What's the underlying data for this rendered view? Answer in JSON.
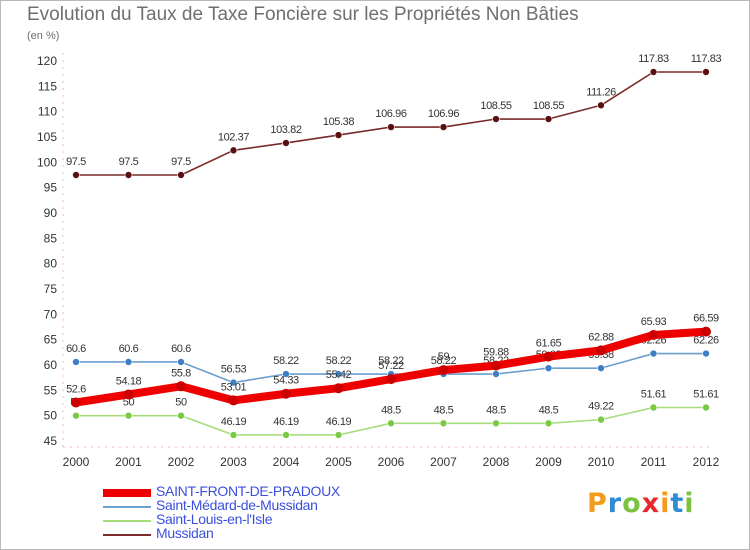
{
  "title": "Evolution du Taux de Taxe Foncière sur les Propriétés Non Bâties",
  "unit": "(en %)",
  "brand": "Proxiti",
  "chart_data": {
    "type": "line",
    "x": [
      "2000",
      "2001",
      "2002",
      "2003",
      "2004",
      "2005",
      "2006",
      "2007",
      "2008",
      "2009",
      "2010",
      "2011",
      "2012"
    ],
    "ylim": [
      45,
      120
    ],
    "yticks": [
      45,
      50,
      55,
      60,
      65,
      70,
      75,
      80,
      85,
      90,
      95,
      100,
      105,
      110,
      115,
      120
    ],
    "grid": false,
    "legend_position": "bottom-left",
    "series": [
      {
        "name": "Mussidan",
        "color": "#7b2a2a",
        "marker": "#5a1010",
        "values": [
          97.5,
          97.5,
          97.5,
          102.37,
          103.82,
          105.38,
          106.96,
          106.96,
          108.55,
          108.55,
          111.26,
          117.83,
          117.83
        ],
        "labels": [
          "97.5",
          "97.5",
          "97.5",
          "102.37",
          "103.82",
          "105.38",
          "106.96",
          "106.96",
          "108.55",
          "108.55",
          "111.26",
          "117.83",
          "117.83"
        ]
      },
      {
        "name": "Saint-Médard-de-Mussidan",
        "color": "#6a9fce",
        "marker": "#3d7fc4",
        "values": [
          60.6,
          60.6,
          60.6,
          56.53,
          58.22,
          58.22,
          58.22,
          58.22,
          58.22,
          59.38,
          59.38,
          62.26,
          62.26
        ],
        "labels": [
          "60.6",
          "60.6",
          "60.6",
          "56.53",
          "58.22",
          "58.22",
          "58.22",
          "58.22",
          "58.22",
          "59.38",
          "59.38",
          "62.26",
          "62.26"
        ]
      },
      {
        "name": "Saint-Louis-en-l'Isle",
        "color": "#a5dd7a",
        "marker": "#7ac943",
        "values": [
          50,
          50,
          50,
          46.19,
          46.19,
          46.19,
          48.5,
          48.5,
          48.5,
          48.5,
          49.22,
          51.61,
          51.61
        ],
        "labels": [
          "50",
          "50",
          "50",
          "46.19",
          "46.19",
          "46.19",
          "48.5",
          "48.5",
          "48.5",
          "48.5",
          "49.22",
          "51.61",
          "51.61"
        ]
      },
      {
        "name": "SAINT-FRONT-DE-PRADOUX",
        "color": "#ee0000",
        "marker": "#cc0000",
        "values": [
          52.6,
          54.18,
          55.8,
          53.01,
          54.33,
          55.42,
          57.22,
          59,
          59.88,
          61.65,
          62.88,
          65.93,
          66.59
        ],
        "labels": [
          "52.6",
          "54.18",
          "55.8",
          "53.01",
          "54.33",
          "55.42",
          "57.22",
          "59",
          "59.88",
          "61.65",
          "62.88",
          "65.93",
          "66.59"
        ]
      }
    ]
  },
  "legend": [
    {
      "name": "SAINT-FRONT-DE-PRADOUX",
      "color": "#ee0000",
      "thick": true
    },
    {
      "name": "Saint-Médard-de-Mussidan",
      "color": "#6a9fce",
      "thick": false
    },
    {
      "name": "Saint-Louis-en-l'Isle",
      "color": "#a5dd7a",
      "thick": false
    },
    {
      "name": "Mussidan",
      "color": "#7b2a2a",
      "thick": false
    }
  ]
}
